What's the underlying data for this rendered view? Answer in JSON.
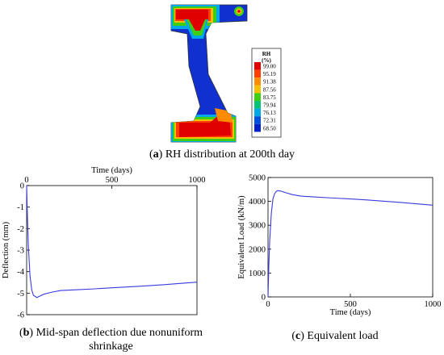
{
  "figure_a": {
    "caption_prefix": "a",
    "caption_text": " RH distribution at 200th day",
    "legend": {
      "title_line1": "RH",
      "title_line2": "(%)",
      "levels": [
        "99.00",
        "95.19",
        "91.38",
        "87.56",
        "83.75",
        "79.94",
        "76.13",
        "72.31",
        "68.50"
      ],
      "colors": [
        "#e00000",
        "#ff4000",
        "#ff8c00",
        "#f5c000",
        "#3ecf14",
        "#00c478",
        "#00a8e8",
        "#0050e0",
        "#0020c8"
      ]
    }
  },
  "chart_data": [
    {
      "type": "line",
      "id": "b",
      "xlabel": "Time (days)",
      "ylabel": "Deflection (mm)",
      "xlim": [
        0,
        1000
      ],
      "ylim": [
        -6,
        0
      ],
      "xticks": [
        0,
        500,
        1000
      ],
      "yticks": [
        0,
        -1,
        -2,
        -3,
        -4,
        -5,
        -6
      ],
      "x_axis_position": "top",
      "color": "#3a3ae0",
      "series": [
        {
          "x": [
            0,
            5,
            10,
            20,
            30,
            40,
            60,
            80,
            100,
            150,
            200,
            300,
            400,
            500,
            600,
            700,
            800,
            900,
            1000
          ],
          "y": [
            0,
            -1.6,
            -2.8,
            -4.2,
            -4.85,
            -5.1,
            -5.2,
            -5.13,
            -5.05,
            -4.95,
            -4.88,
            -4.84,
            -4.8,
            -4.75,
            -4.71,
            -4.66,
            -4.61,
            -4.55,
            -4.49
          ]
        }
      ],
      "caption_prefix": "b",
      "caption_line1": " Mid-span deflection due nonuniform",
      "caption_line2": "shrinkage"
    },
    {
      "type": "line",
      "id": "c",
      "xlabel": "Time (days)",
      "ylabel": "Equivalent Load (kN/m)",
      "xlim": [
        0,
        1000
      ],
      "ylim": [
        0,
        5000
      ],
      "xticks": [
        0,
        500,
        1000
      ],
      "yticks": [
        0,
        1000,
        2000,
        3000,
        4000,
        5000
      ],
      "x_axis_position": "bottom",
      "color": "#3a3ae0",
      "series": [
        {
          "x": [
            0,
            5,
            10,
            20,
            30,
            40,
            50,
            60,
            80,
            100,
            150,
            200,
            300,
            400,
            500,
            600,
            700,
            800,
            900,
            1000
          ],
          "y": [
            0,
            1300,
            2300,
            3500,
            4100,
            4320,
            4420,
            4450,
            4430,
            4380,
            4280,
            4220,
            4180,
            4140,
            4100,
            4060,
            4010,
            3960,
            3900,
            3840
          ]
        }
      ],
      "caption_prefix": "c",
      "caption_text": " Equivalent load"
    }
  ]
}
